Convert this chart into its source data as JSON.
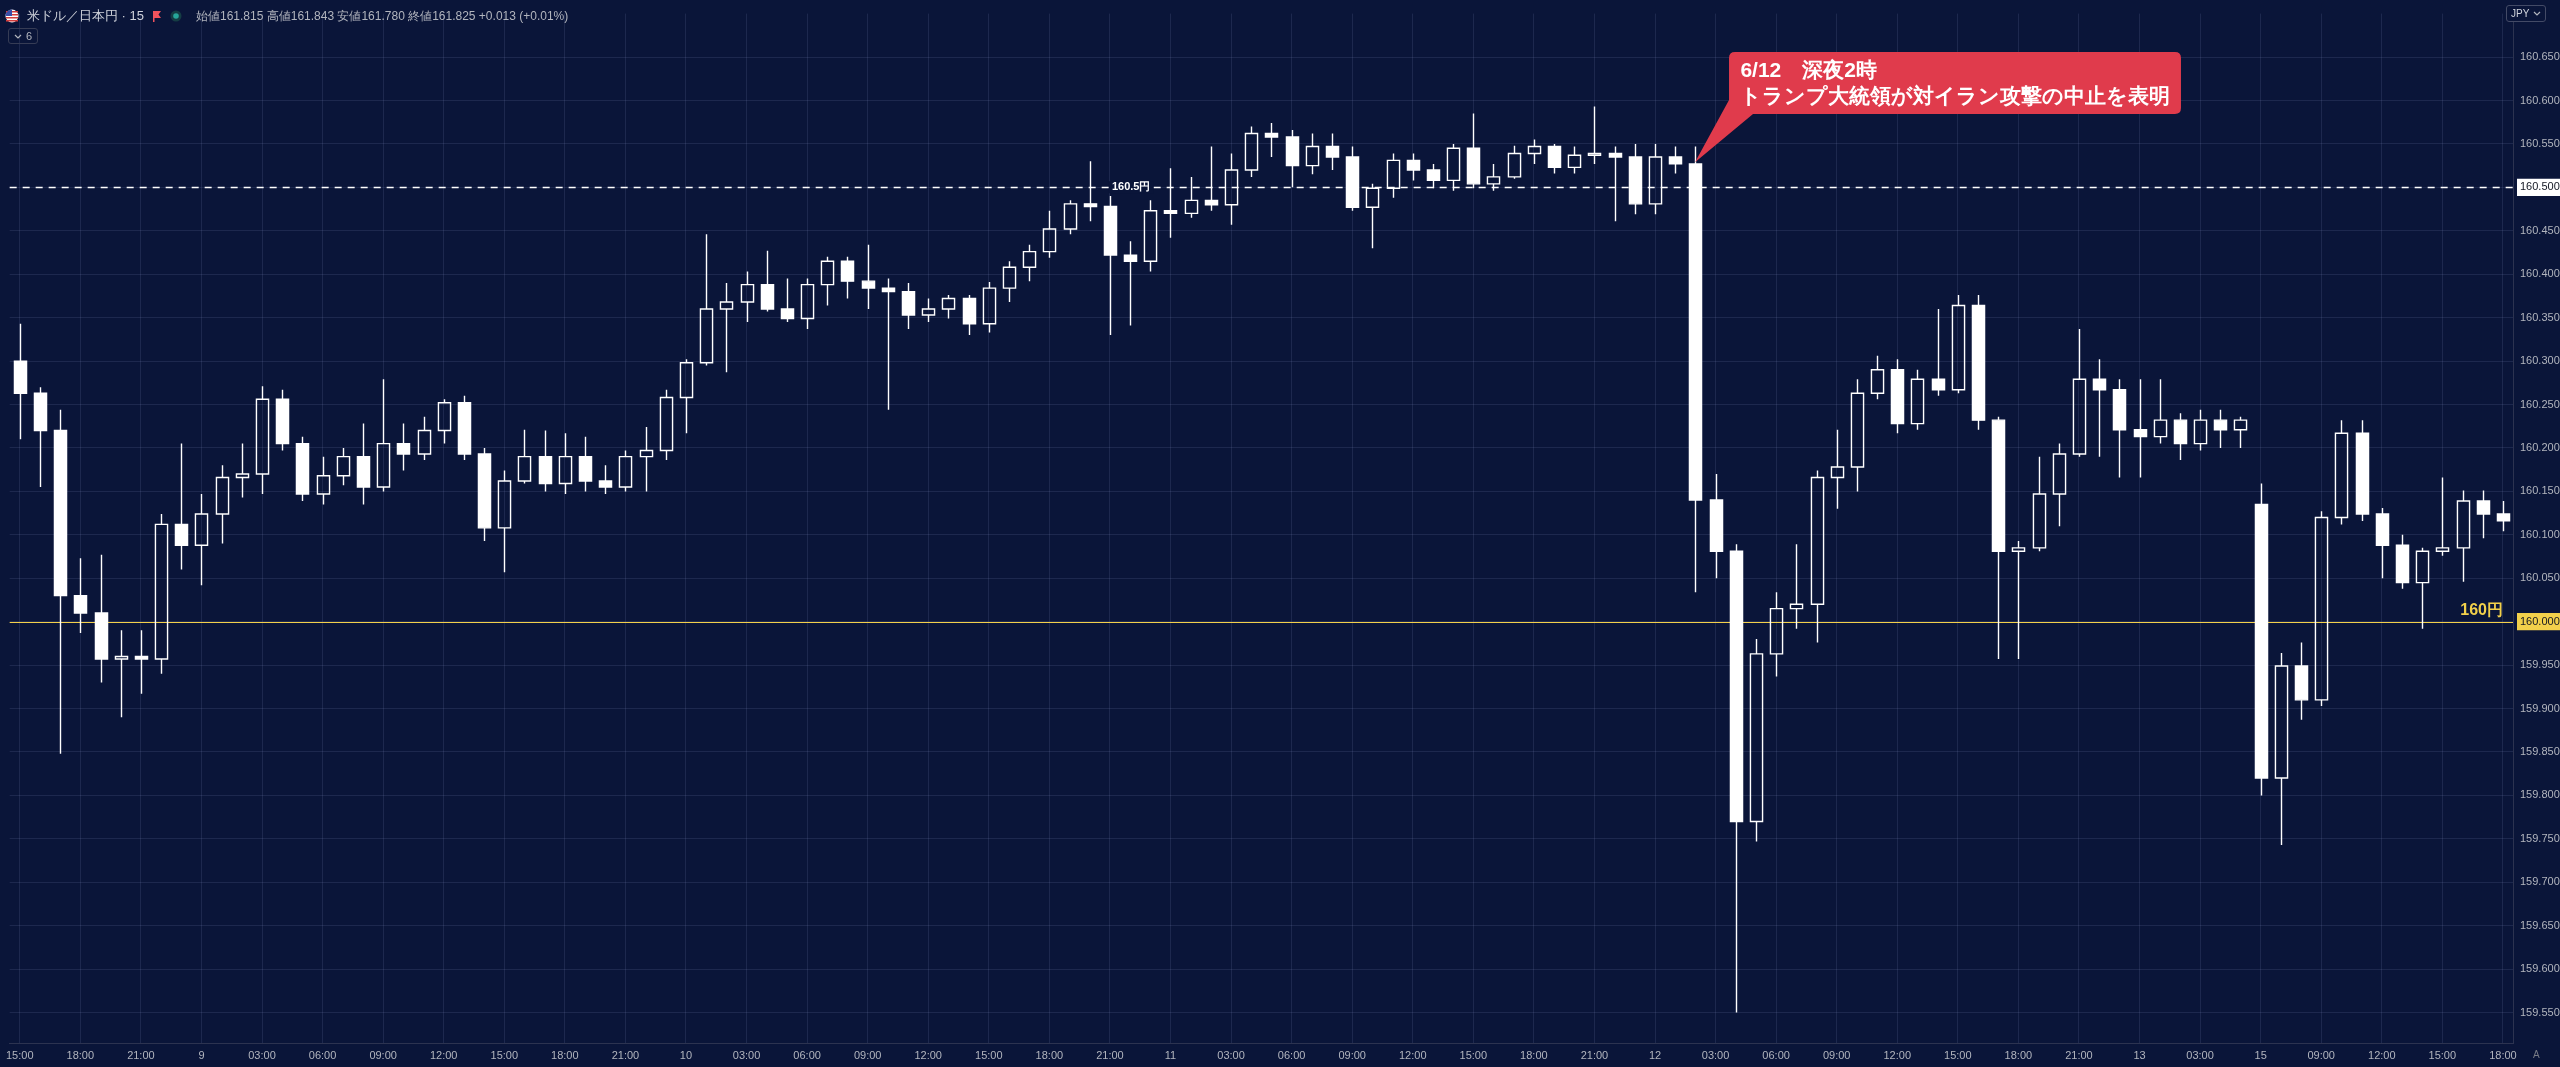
{
  "chart_data": {
    "type": "candlestick",
    "title": "米ドル／日本円 · 15",
    "subtitle": "始値161.815 高値161.843 安値161.780 終値161.825 +0.013 (+0.01%)",
    "ylabel": "JPY",
    "annotations": [
      "6/12　深夜2時",
      "トランプ大統領が対イラン攻撃の中止を表明",
      "6",
      "A"
    ],
    "categories": [
      "15:00",
      null,
      null,
      "18:00",
      null,
      null,
      "21:00",
      null,
      null,
      "9",
      null,
      null,
      "03:00",
      null,
      null,
      "06:00",
      null,
      null,
      "09:00",
      null,
      null,
      "12:00",
      null,
      null,
      "15:00",
      null,
      null,
      "18:00",
      null,
      null,
      "21:00",
      null,
      null,
      "10",
      null,
      null,
      "03:00",
      null,
      null,
      "06:00",
      null,
      null,
      "09:00",
      null,
      null,
      "12:00",
      null,
      null,
      "15:00",
      null,
      null,
      "18:00",
      null,
      null,
      "21:00",
      null,
      null,
      "11",
      null,
      null,
      "03:00",
      null,
      null,
      "06:00",
      null,
      null,
      "09:00",
      null,
      null,
      "12:00",
      null,
      null,
      "15:00",
      null,
      null,
      "18:00",
      null,
      null,
      "21:00",
      null,
      null,
      "12",
      null,
      null,
      "03:00",
      null,
      null,
      "06:00",
      null,
      null,
      "09:00",
      null,
      null,
      "12:00",
      null,
      null,
      "15:00",
      null,
      null,
      "18:00",
      null,
      null,
      "21:00",
      null,
      null,
      "13",
      null,
      null,
      "03:00",
      null,
      null,
      "15",
      null,
      null,
      "09:00",
      null,
      null,
      "12:00",
      null,
      null,
      "15:00",
      null,
      null,
      "18:00"
    ],
    "ohlc": [
      [
        160.3,
        160.343,
        160.21,
        160.263
      ],
      [
        160.263,
        160.27,
        160.155,
        160.22
      ],
      [
        160.22,
        160.244,
        159.848,
        160.03
      ],
      [
        160.03,
        160.073,
        159.987,
        160.01
      ],
      [
        160.01,
        160.077,
        159.93,
        159.957
      ],
      [
        159.957,
        159.99,
        159.89,
        159.96
      ],
      [
        159.96,
        159.99,
        159.917,
        159.957
      ],
      [
        159.957,
        160.124,
        159.94,
        160.112
      ],
      [
        160.112,
        160.205,
        160.06,
        160.088
      ],
      [
        160.088,
        160.147,
        160.042,
        160.124
      ],
      [
        160.124,
        160.18,
        160.09,
        160.166
      ],
      [
        160.166,
        160.205,
        160.143,
        160.17
      ],
      [
        160.17,
        160.271,
        160.147,
        160.256
      ],
      [
        160.256,
        160.267,
        160.197,
        160.205
      ],
      [
        160.205,
        160.213,
        160.139,
        160.147
      ],
      [
        160.147,
        160.19,
        160.135,
        160.168
      ],
      [
        160.168,
        160.2,
        160.157,
        160.19
      ],
      [
        160.19,
        160.228,
        160.135,
        160.155
      ],
      [
        160.155,
        160.279,
        160.15,
        160.205
      ],
      [
        160.205,
        160.228,
        160.174,
        160.193
      ],
      [
        160.193,
        160.236,
        160.186,
        160.22
      ],
      [
        160.22,
        160.256,
        160.205,
        160.252
      ],
      [
        160.252,
        160.26,
        160.186,
        160.193
      ],
      [
        160.193,
        160.2,
        160.093,
        160.108
      ],
      [
        160.108,
        160.174,
        160.057,
        160.162
      ],
      [
        160.162,
        160.221,
        160.159,
        160.19
      ],
      [
        160.19,
        160.22,
        160.15,
        160.159
      ],
      [
        160.159,
        160.217,
        160.147,
        160.19
      ],
      [
        160.19,
        160.213,
        160.15,
        160.162
      ],
      [
        160.162,
        160.18,
        160.147,
        160.155
      ],
      [
        160.155,
        160.197,
        160.15,
        160.19
      ],
      [
        160.19,
        160.224,
        160.15,
        160.197
      ],
      [
        160.197,
        160.267,
        160.186,
        160.258
      ],
      [
        160.258,
        160.302,
        160.217,
        160.298
      ],
      [
        160.298,
        160.446,
        160.295,
        160.36
      ],
      [
        160.36,
        160.39,
        160.287,
        160.368
      ],
      [
        160.368,
        160.403,
        160.345,
        160.388
      ],
      [
        160.388,
        160.427,
        160.357,
        160.36
      ],
      [
        160.36,
        160.395,
        160.345,
        160.349
      ],
      [
        160.349,
        160.395,
        160.337,
        160.388
      ],
      [
        160.388,
        160.42,
        160.364,
        160.415
      ],
      [
        160.415,
        160.42,
        160.372,
        160.392
      ],
      [
        160.392,
        160.434,
        160.36,
        160.384
      ],
      [
        160.384,
        160.395,
        160.244,
        160.38
      ],
      [
        160.38,
        160.39,
        160.337,
        160.353
      ],
      [
        160.353,
        160.372,
        160.345,
        160.36
      ],
      [
        160.36,
        160.376,
        160.349,
        160.372
      ],
      [
        160.372,
        160.376,
        160.33,
        160.343
      ],
      [
        160.343,
        160.391,
        160.333,
        160.384
      ],
      [
        160.384,
        160.415,
        160.368,
        160.408
      ],
      [
        160.408,
        160.434,
        160.392,
        160.426
      ],
      [
        160.426,
        160.473,
        160.419,
        160.452
      ],
      [
        160.452,
        160.485,
        160.446,
        160.481
      ],
      [
        160.481,
        160.53,
        160.461,
        160.478
      ],
      [
        160.478,
        160.49,
        160.33,
        160.422
      ],
      [
        160.422,
        160.438,
        160.341,
        160.415
      ],
      [
        160.415,
        160.485,
        160.403,
        160.473
      ],
      [
        160.473,
        160.522,
        160.442,
        160.47
      ],
      [
        160.47,
        160.512,
        160.465,
        160.485
      ],
      [
        160.485,
        160.547,
        160.473,
        160.48
      ],
      [
        160.48,
        160.539,
        160.457,
        160.52
      ],
      [
        160.52,
        160.57,
        160.512,
        160.562
      ],
      [
        160.562,
        160.574,
        160.535,
        160.558
      ],
      [
        160.558,
        160.566,
        160.5,
        160.525
      ],
      [
        160.525,
        160.562,
        160.515,
        160.547
      ],
      [
        160.547,
        160.562,
        160.52,
        160.535
      ],
      [
        160.535,
        160.547,
        160.473,
        160.477
      ],
      [
        160.477,
        160.504,
        160.43,
        160.499
      ],
      [
        160.499,
        160.539,
        160.488,
        160.531
      ],
      [
        160.531,
        160.539,
        160.508,
        160.52
      ],
      [
        160.52,
        160.527,
        160.499,
        160.508
      ],
      [
        160.508,
        160.55,
        160.496,
        160.545
      ],
      [
        160.545,
        160.585,
        160.499,
        160.504
      ],
      [
        160.504,
        160.527,
        160.496,
        160.512
      ],
      [
        160.512,
        160.548,
        160.51,
        160.539
      ],
      [
        160.539,
        160.555,
        160.527,
        160.547
      ],
      [
        160.547,
        160.55,
        160.516,
        160.523
      ],
      [
        160.523,
        160.547,
        160.516,
        160.537
      ],
      [
        160.537,
        160.593,
        160.527,
        160.539
      ],
      [
        160.539,
        160.547,
        160.461,
        160.535
      ],
      [
        160.535,
        160.55,
        160.469,
        160.481
      ],
      [
        160.481,
        160.55,
        160.469,
        160.535
      ],
      [
        160.535,
        160.547,
        160.516,
        160.527
      ],
      [
        160.527,
        160.547,
        160.034,
        160.14
      ],
      [
        160.14,
        160.17,
        160.05,
        160.081
      ],
      [
        160.081,
        160.089,
        159.55,
        159.77
      ],
      [
        159.77,
        159.98,
        159.747,
        159.963
      ],
      [
        159.963,
        160.034,
        159.937,
        160.015
      ],
      [
        160.015,
        160.089,
        159.992,
        160.02
      ],
      [
        160.02,
        160.174,
        159.976,
        160.166
      ],
      [
        160.166,
        160.221,
        160.13,
        160.178
      ],
      [
        160.178,
        160.279,
        160.15,
        160.263
      ],
      [
        160.263,
        160.306,
        160.256,
        160.29
      ],
      [
        160.29,
        160.302,
        160.217,
        160.228
      ],
      [
        160.228,
        160.29,
        160.221,
        160.279
      ],
      [
        160.279,
        160.36,
        160.26,
        160.267
      ],
      [
        160.267,
        160.376,
        160.263,
        160.364
      ],
      [
        160.364,
        160.376,
        160.221,
        160.232
      ],
      [
        160.232,
        160.236,
        159.957,
        160.081
      ],
      [
        160.081,
        160.093,
        159.957,
        160.085
      ],
      [
        160.085,
        160.19,
        160.081,
        160.147
      ],
      [
        160.147,
        160.205,
        160.11,
        160.193
      ],
      [
        160.193,
        160.337,
        160.19,
        160.279
      ],
      [
        160.279,
        160.302,
        160.19,
        160.267
      ],
      [
        160.267,
        160.279,
        160.166,
        160.221
      ],
      [
        160.221,
        160.279,
        160.166,
        160.213
      ],
      [
        160.213,
        160.279,
        160.205,
        160.232
      ],
      [
        160.232,
        160.24,
        160.186,
        160.205
      ],
      [
        160.205,
        160.244,
        160.197,
        160.232
      ],
      [
        160.232,
        160.244,
        160.2,
        160.221
      ],
      [
        160.221,
        160.236,
        160.2,
        160.232
      ],
      [
        160.135,
        160.159,
        159.8,
        159.82
      ],
      [
        159.82,
        159.964,
        159.743,
        159.949
      ],
      [
        159.949,
        159.976,
        159.887,
        159.91
      ],
      [
        159.91,
        160.127,
        159.903,
        160.12
      ],
      [
        160.12,
        160.232,
        160.112,
        160.217
      ],
      [
        160.217,
        160.232,
        160.116,
        160.124
      ],
      [
        160.124,
        160.131,
        160.05,
        160.088
      ],
      [
        160.088,
        160.1,
        160.038,
        160.045
      ],
      [
        160.045,
        160.085,
        159.992,
        160.081
      ],
      [
        160.081,
        160.166,
        160.076,
        160.085
      ],
      [
        160.085,
        160.151,
        160.046,
        160.139
      ],
      [
        160.139,
        160.151,
        160.096,
        160.124
      ],
      [
        160.124,
        160.139,
        160.104,
        160.116
      ]
    ],
    "color": "#ffffff",
    "ylim": [
      159.515,
      160.7
    ],
    "yticks": [
      {
        "value": 159.55,
        "label": "159.550"
      },
      {
        "value": 159.6,
        "label": "159.600"
      },
      {
        "value": 159.65,
        "label": "159.650"
      },
      {
        "value": 159.7,
        "label": "159.700"
      },
      {
        "value": 159.75,
        "label": "159.750"
      },
      {
        "value": 159.8,
        "label": "159.800"
      },
      {
        "value": 159.85,
        "label": "159.850"
      },
      {
        "value": 159.9,
        "label": "159.900"
      },
      {
        "value": 159.95,
        "label": "159.950"
      },
      {
        "value": 160,
        "label": "160.000"
      },
      {
        "value": 160.05,
        "label": "160.050"
      },
      {
        "value": 160.1,
        "label": "160.100"
      },
      {
        "value": 160.15,
        "label": "160.150"
      },
      {
        "value": 160.2,
        "label": "160.200"
      },
      {
        "value": 160.25,
        "label": "160.250"
      },
      {
        "value": 160.3,
        "label": "160.300"
      },
      {
        "value": 160.35,
        "label": "160.350"
      },
      {
        "value": 160.4,
        "label": "160.400"
      },
      {
        "value": 160.45,
        "label": "160.450"
      },
      {
        "value": 160.5,
        "label": "160.500"
      },
      {
        "value": 160.55,
        "label": "160.550"
      },
      {
        "value": 160.6,
        "label": "160.600"
      },
      {
        "value": 160.65,
        "label": "160.650"
      }
    ],
    "grid": true,
    "ref_lines": [
      {
        "axis": "y",
        "value": 160.5,
        "label": "160.5円",
        "color": "#ffffff",
        "line_style": "dashed"
      },
      {
        "axis": "y",
        "value": 160,
        "label": "160円",
        "color": "#f2d04b",
        "line_style": "solid"
      }
    ]
  }
}
